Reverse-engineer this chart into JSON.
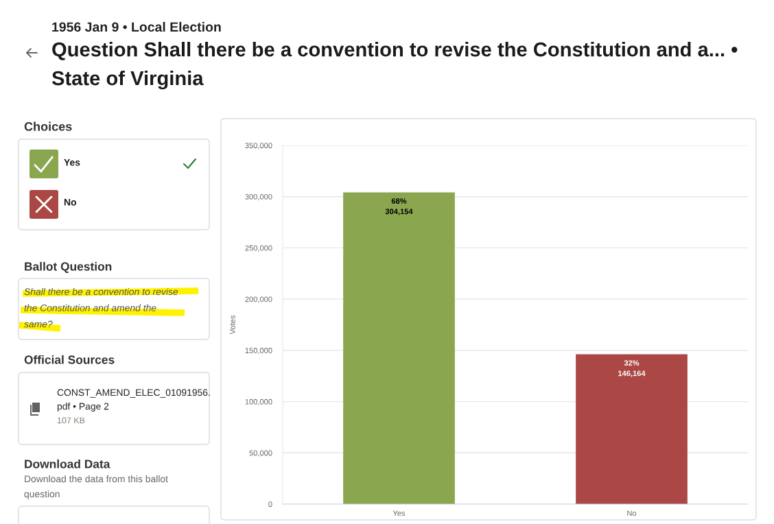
{
  "chart_data": {
    "type": "bar",
    "title": "Question Shall there be a convention to revise the Constitution and a... • State of Virginia",
    "subtitle": "1956 Jan 9 • Local Election",
    "ylabel": "Votes",
    "categories": [
      "Yes",
      "No"
    ],
    "values": [
      304154,
      146164
    ],
    "colors": [
      "#8aa64e",
      "#ab4744"
    ],
    "value_labels": [
      "68%\n304,154",
      "32%\n146,164"
    ],
    "ylim": [
      0,
      350000
    ],
    "yticks": [
      0,
      {
        "value": 50000,
        "label": "50,000"
      },
      {
        "value": 100000,
        "label": "100,000"
      },
      {
        "value": 150000,
        "label": "150,000"
      },
      {
        "value": 200000,
        "label": "200,000"
      },
      {
        "value": 250000,
        "label": "250,000"
      },
      {
        "value": 300000,
        "label": "300,000"
      },
      {
        "value": 350000,
        "label": "350,000"
      }
    ],
    "grid": "y",
    "annotations": [
      "Choices",
      "Yes",
      "No",
      "Ballot Question",
      "Shall there be a convention to revise\nthe Constitution and amend the\nsame?",
      "Official Sources",
      "CONST_AMEND_ELEC_01091956.\npdf • Page 2",
      "107 KB",
      "Download Data",
      "Download the data from this ballot\nquestion"
    ]
  }
}
